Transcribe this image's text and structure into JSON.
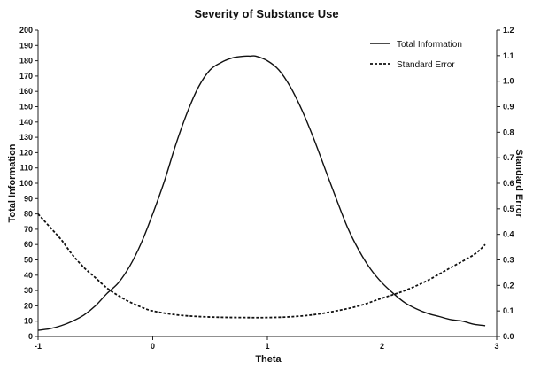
{
  "chart_data": {
    "type": "line",
    "title": "Severity of Substance Use",
    "xlabel": "Theta",
    "ylabel_left": "Total Information",
    "ylabel_right": "Standard Error",
    "xlim": [
      -1,
      3
    ],
    "ylim_left": [
      0,
      200
    ],
    "ylim_right": [
      0,
      1.2
    ],
    "x_ticks": [
      "-1",
      "0",
      "1",
      "2",
      "3"
    ],
    "y_ticks_left": [
      "0",
      "10",
      "20",
      "30",
      "40",
      "50",
      "60",
      "70",
      "80",
      "90",
      "100",
      "110",
      "120",
      "130",
      "140",
      "150",
      "160",
      "170",
      "180",
      "190",
      "200"
    ],
    "y_ticks_right": [
      "0.0",
      "0.1",
      "0.2",
      "0.3",
      "0.4",
      "0.5",
      "0.6",
      "0.7",
      "0.8",
      "0.9",
      "1.0",
      "1.1",
      "1.2"
    ],
    "legend_position": "top-right",
    "grid": false,
    "series": [
      {
        "name": "Total Information",
        "axis": "left",
        "style": "solid",
        "color": "#111111",
        "x": [
          -1.0,
          -0.9,
          -0.8,
          -0.7,
          -0.6,
          -0.5,
          -0.4,
          -0.3,
          -0.2,
          -0.1,
          0.0,
          0.1,
          0.2,
          0.3,
          0.4,
          0.5,
          0.6,
          0.7,
          0.8,
          0.85,
          0.9,
          1.0,
          1.1,
          1.2,
          1.3,
          1.4,
          1.5,
          1.6,
          1.7,
          1.8,
          1.9,
          2.0,
          2.1,
          2.2,
          2.3,
          2.4,
          2.5,
          2.6,
          2.7,
          2.8,
          2.9
        ],
        "values": [
          4,
          5,
          7,
          10,
          14,
          20,
          28,
          35,
          46,
          61,
          80,
          101,
          125,
          146,
          163,
          174,
          179,
          182,
          183,
          183,
          183,
          180,
          174,
          163,
          148,
          130,
          110,
          90,
          71,
          56,
          44,
          35,
          28,
          22,
          18,
          15,
          13,
          11,
          10,
          8,
          7
        ]
      },
      {
        "name": "Standard Error",
        "axis": "right",
        "style": "dashed",
        "color": "#111111",
        "x": [
          -1.0,
          -0.9,
          -0.8,
          -0.7,
          -0.6,
          -0.5,
          -0.4,
          -0.3,
          -0.2,
          -0.1,
          0.0,
          0.2,
          0.4,
          0.6,
          0.8,
          1.0,
          1.2,
          1.4,
          1.6,
          1.8,
          2.0,
          2.2,
          2.4,
          2.6,
          2.8,
          2.9
        ],
        "values": [
          0.48,
          0.43,
          0.38,
          0.32,
          0.27,
          0.23,
          0.19,
          0.16,
          0.135,
          0.115,
          0.1,
          0.085,
          0.078,
          0.075,
          0.074,
          0.074,
          0.077,
          0.085,
          0.1,
          0.12,
          0.15,
          0.18,
          0.22,
          0.27,
          0.32,
          0.36
        ]
      }
    ]
  }
}
